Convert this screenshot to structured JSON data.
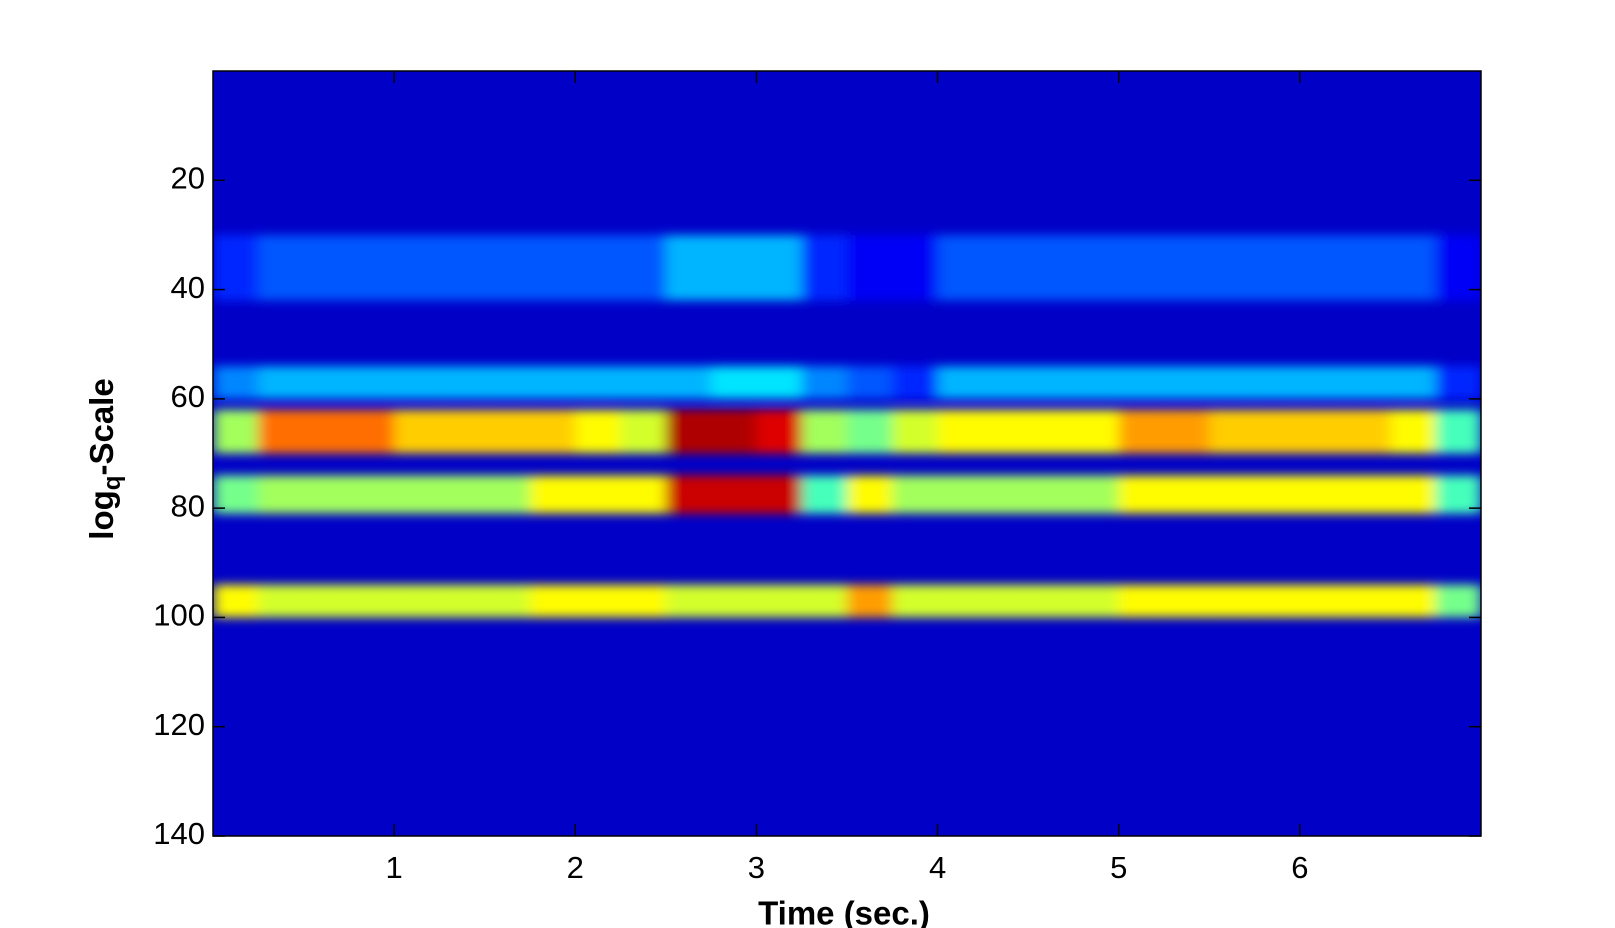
{
  "chart_data": {
    "type": "heatmap",
    "xlabel": "Time (sec.)",
    "ylabel": [
      "log",
      "q",
      "-Scale"
    ],
    "colormap": "jet",
    "zlim": [
      0,
      1
    ],
    "xlim": [
      0,
      7
    ],
    "xticks": [
      1,
      2,
      3,
      4,
      5,
      6
    ],
    "ylim": [
      0,
      140
    ],
    "yticks": [
      20,
      40,
      60,
      80,
      100,
      120,
      140
    ],
    "y_direction": "reverse",
    "xbins": [
      0,
      0.25,
      0.5,
      0.75,
      1,
      1.25,
      1.5,
      1.75,
      2,
      2.25,
      2.5,
      2.75,
      3,
      3.25,
      3.5,
      3.75,
      4,
      4.25,
      4.5,
      4.75,
      5,
      5.25,
      5.5,
      5.75,
      6,
      6.25,
      6.5,
      6.75,
      7
    ],
    "rows": [
      {
        "scale": [
          30,
          42
        ],
        "values": [
          0.1,
          0.15,
          0.15,
          0.15,
          0.15,
          0.15,
          0.15,
          0.15,
          0.15,
          0.15,
          0.25,
          0.25,
          0.25,
          0.1,
          0.05,
          0.05,
          0.15,
          0.15,
          0.15,
          0.15,
          0.15,
          0.15,
          0.15,
          0.15,
          0.15,
          0.15,
          0.15,
          0.05
        ]
      },
      {
        "scale": [
          54,
          60
        ],
        "values": [
          0.2,
          0.25,
          0.25,
          0.25,
          0.25,
          0.25,
          0.25,
          0.25,
          0.25,
          0.25,
          0.25,
          0.3,
          0.3,
          0.2,
          0.15,
          0.1,
          0.25,
          0.25,
          0.25,
          0.25,
          0.25,
          0.25,
          0.25,
          0.25,
          0.25,
          0.25,
          0.25,
          0.1
        ]
      },
      {
        "scale": [
          62,
          70
        ],
        "values": [
          0.5,
          0.75,
          0.75,
          0.75,
          0.65,
          0.65,
          0.65,
          0.65,
          0.6,
          0.55,
          0.95,
          0.95,
          0.9,
          0.5,
          0.45,
          0.55,
          0.6,
          0.6,
          0.6,
          0.6,
          0.7,
          0.7,
          0.65,
          0.65,
          0.65,
          0.65,
          0.6,
          0.4
        ]
      },
      {
        "scale": [
          74,
          81
        ],
        "values": [
          0.45,
          0.5,
          0.5,
          0.5,
          0.5,
          0.5,
          0.5,
          0.6,
          0.6,
          0.6,
          0.92,
          0.92,
          0.92,
          0.4,
          0.6,
          0.5,
          0.5,
          0.5,
          0.5,
          0.5,
          0.6,
          0.6,
          0.6,
          0.6,
          0.6,
          0.6,
          0.6,
          0.4
        ]
      },
      {
        "scale": [
          94,
          100
        ],
        "values": [
          0.6,
          0.55,
          0.55,
          0.55,
          0.55,
          0.55,
          0.55,
          0.6,
          0.6,
          0.6,
          0.55,
          0.55,
          0.55,
          0.55,
          0.7,
          0.55,
          0.55,
          0.55,
          0.55,
          0.55,
          0.6,
          0.6,
          0.6,
          0.6,
          0.6,
          0.6,
          0.6,
          0.45
        ]
      }
    ]
  }
}
